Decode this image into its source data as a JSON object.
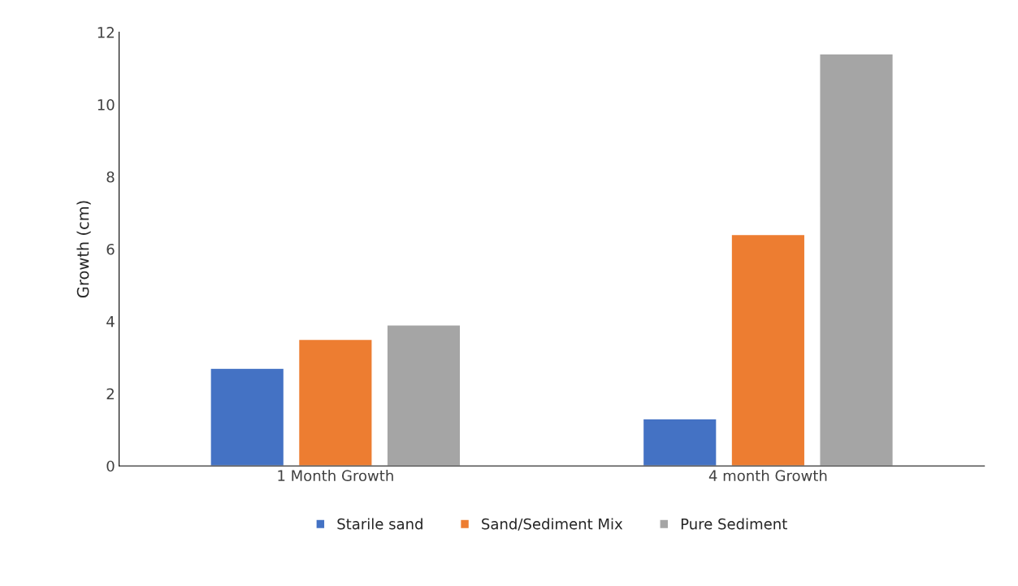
{
  "chart_data": {
    "type": "bar",
    "ylabel": "Growth (cm)",
    "categories": [
      "1 Month Growth",
      "4 month Growth"
    ],
    "series": [
      {
        "name": "Starile sand",
        "color": "#4472c4",
        "values": [
          2.7,
          1.3
        ]
      },
      {
        "name": "Sand/Sediment Mix",
        "color": "#ed7d31",
        "values": [
          3.5,
          6.4
        ]
      },
      {
        "name": "Pure Sediment",
        "color": "#a5a5a5",
        "values": [
          3.9,
          11.4
        ]
      }
    ],
    "ylim": [
      0,
      12
    ],
    "yticks": [
      0,
      2,
      4,
      6,
      8,
      10,
      12
    ],
    "grid": false,
    "legend": "bottom"
  }
}
